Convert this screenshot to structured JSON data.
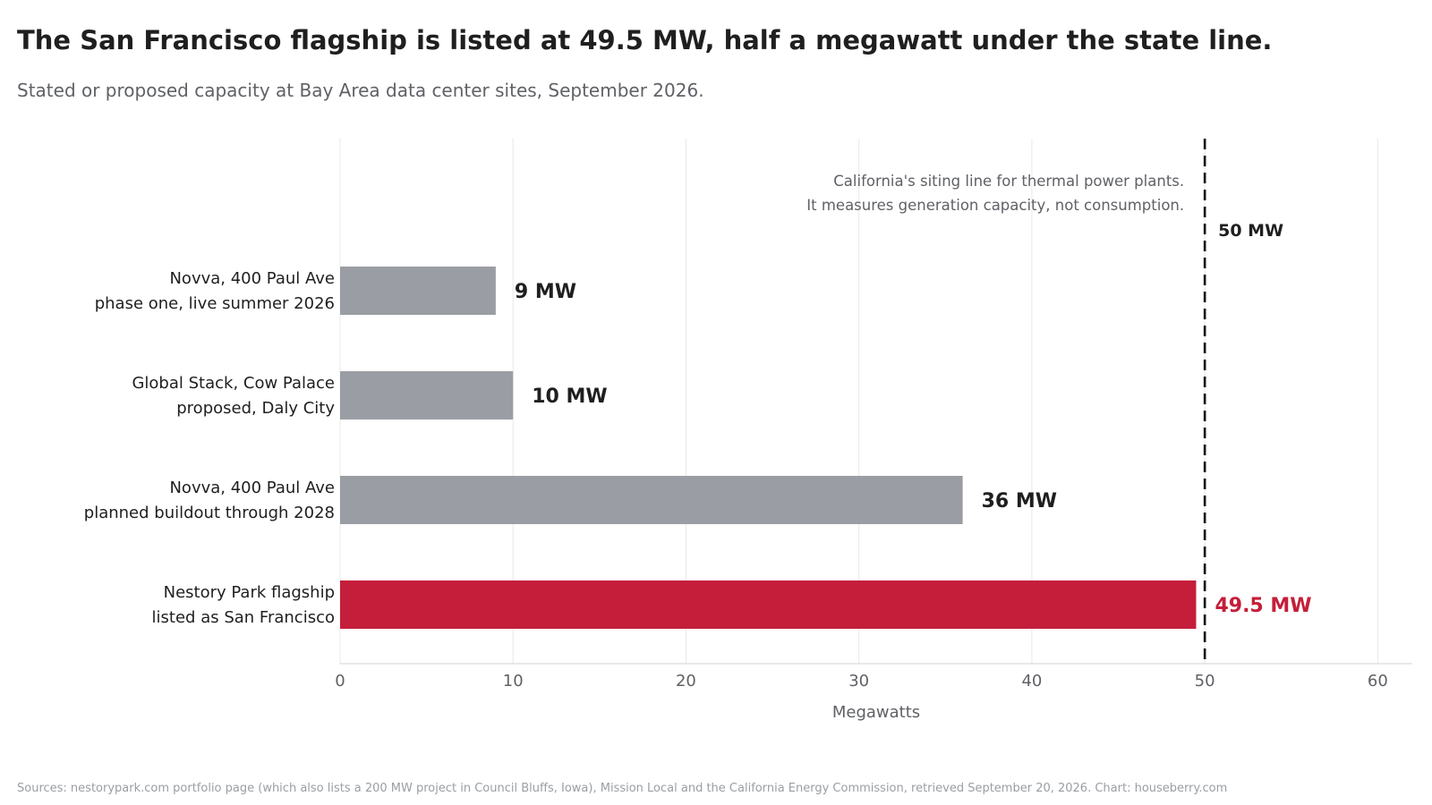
{
  "title": "The San Francisco flagship is listed at 49.5 MW, half a megawatt under the state line.",
  "subtitle": "Stated or proposed capacity at Bay Area data center sites, September 2026.",
  "source": "Sources: nestorypark.com portfolio page (which also lists a 200 MW project in Council Bluffs, Iowa), Mission Local and the California Energy Commission, retrieved September 20, 2026. Chart: houseberry.com",
  "colors": {
    "bar_default": "#9a9ea4",
    "bar_highlight": "#c41e3a",
    "text": "#1f1f1f",
    "muted": "#5f6166",
    "grid": "#e8e8e8"
  },
  "chart_data": {
    "type": "bar",
    "orientation": "horizontal",
    "categories": [
      [
        "Novva, 400 Paul Ave",
        "phase one, live summer 2026"
      ],
      [
        "Global Stack, Cow Palace",
        "proposed, Daly City"
      ],
      [
        "Novva, 400 Paul Ave",
        "planned buildout through 2028"
      ],
      [
        "Nestory Park flagship",
        "listed as San Francisco"
      ]
    ],
    "values": [
      9,
      10,
      36,
      49.5
    ],
    "value_labels": [
      "9 MW",
      "10 MW",
      "36 MW",
      "49.5 MW"
    ],
    "highlight": [
      false,
      false,
      false,
      true
    ],
    "xlabel": "Megawatts",
    "ylabel": "",
    "xlim": [
      0,
      62
    ],
    "xticks": [
      0,
      10,
      20,
      30,
      40,
      50,
      60
    ],
    "grid": true,
    "reference_line": {
      "value": 50,
      "label": "50 MW",
      "annotation": [
        "California's siting line for thermal power plants.",
        "It measures generation capacity, not consumption."
      ]
    }
  }
}
